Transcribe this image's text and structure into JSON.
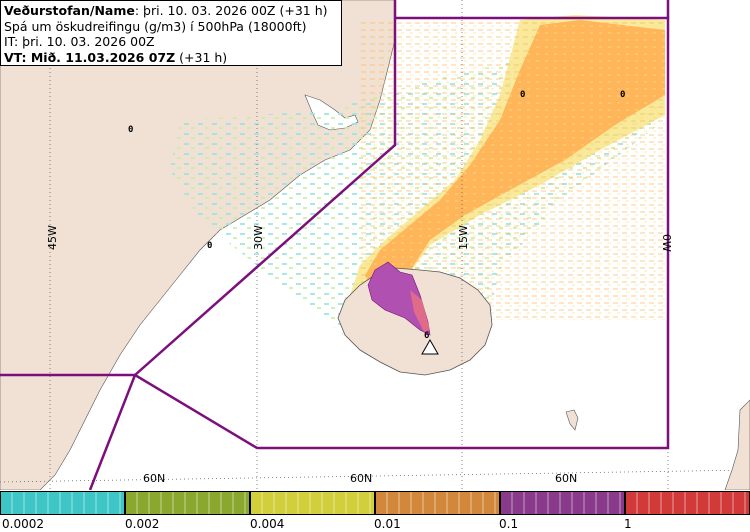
{
  "header": {
    "line1_bold": "Veðurstofan/Name",
    "line1_rest": ": þri. 10. 03. 2026 00Z (+31 h)",
    "line2": "Spá um öskudreifingu (g/m3) í 500hPa (18000ft)",
    "line3": "IT: þri. 10. 03. 2026 00Z",
    "line4_bold": "VT: Mið. 11.03.2026 07Z",
    "line4_rest": " (+31 h)"
  },
  "gridlabels": {
    "lon_45w": "45W",
    "lon_30w": "30W",
    "lon_15w": "15W",
    "lon_0w": "0W",
    "lat_1": "60N",
    "lat_2": "60N",
    "lat_3": "60N"
  },
  "contour_labels": [
    "0",
    "0",
    "0",
    "0",
    "6"
  ],
  "legend": {
    "labels": [
      "0.0002",
      "0.002",
      "0.004",
      "0.01",
      "0.1",
      "1"
    ],
    "colors": [
      "#3ec6c6",
      "#8aa82e",
      "#d2cf3c",
      "#d2883a",
      "#8a3a8a",
      "#d23a3a"
    ]
  },
  "colors": {
    "land": "#f1e0d4",
    "boundary": "#7b0f7b",
    "ash_low": "#f8e58a",
    "ash_mid": "#ffb55a",
    "ash_high": "#b050b0"
  }
}
